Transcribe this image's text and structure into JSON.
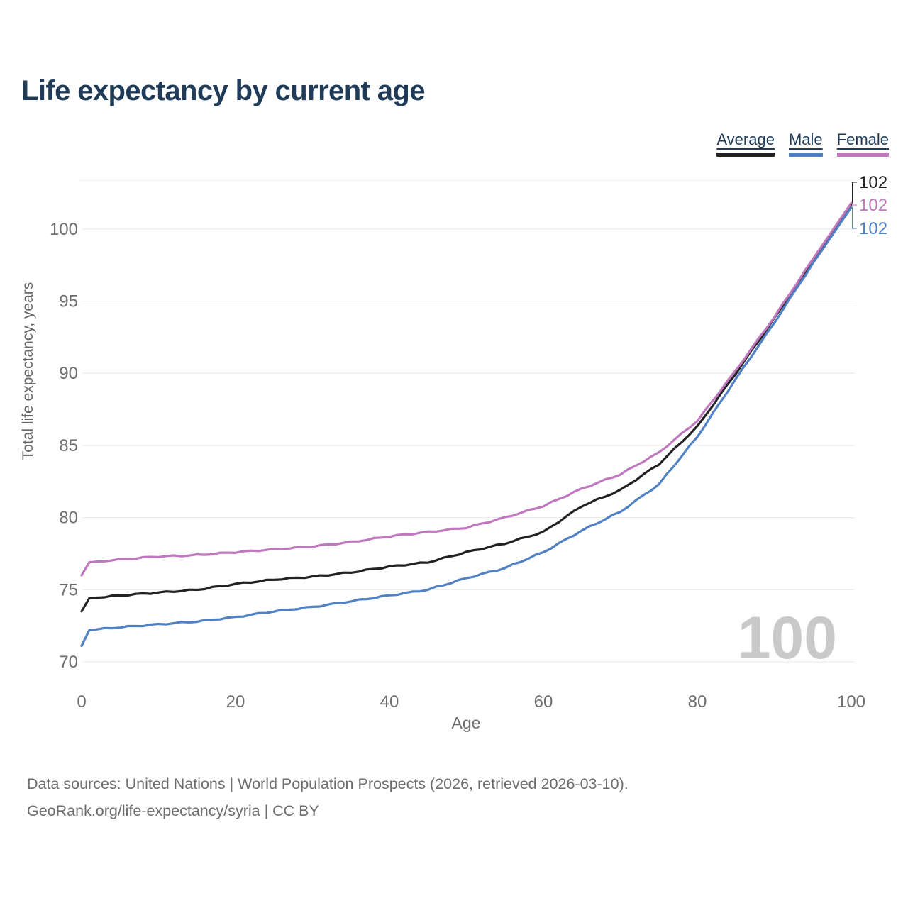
{
  "chart_data": {
    "type": "line",
    "title": "Life expectancy by current age",
    "xlabel": "Age",
    "ylabel": "Total life expectancy, years",
    "x_ticks": [
      0,
      20,
      40,
      60,
      80,
      100
    ],
    "y_ticks": [
      70,
      75,
      80,
      85,
      90,
      95,
      100
    ],
    "xlim": [
      0,
      100
    ],
    "ylim": [
      70,
      103
    ],
    "grid": "horizontal-only",
    "legend_position": "top-right",
    "watermark": "100",
    "watermark_color": "#c9c9c9",
    "x": [
      0,
      1,
      5,
      10,
      15,
      20,
      25,
      30,
      35,
      40,
      45,
      50,
      55,
      60,
      65,
      70,
      75,
      80,
      85,
      90,
      95,
      100
    ],
    "series": [
      {
        "name": "Average",
        "color": "#222222",
        "end_label": "102",
        "values": [
          73.5,
          74.4,
          74.6,
          74.8,
          75.0,
          75.4,
          75.7,
          75.9,
          76.2,
          76.6,
          76.9,
          77.6,
          78.2,
          79.0,
          80.8,
          81.9,
          83.7,
          86.3,
          90.0,
          93.8,
          97.8,
          101.7
        ]
      },
      {
        "name": "Male",
        "color": "#5181c5",
        "end_label": "102",
        "values": [
          71.1,
          72.2,
          72.4,
          72.6,
          72.8,
          73.1,
          73.5,
          73.8,
          74.2,
          74.6,
          75.0,
          75.8,
          76.5,
          77.6,
          79.1,
          80.4,
          82.3,
          85.6,
          89.6,
          93.5,
          97.6,
          101.5
        ]
      },
      {
        "name": "Female",
        "color": "#bf77bd",
        "end_label": "102",
        "values": [
          76.0,
          76.9,
          77.1,
          77.3,
          77.4,
          77.6,
          77.8,
          78.0,
          78.3,
          78.7,
          79.0,
          79.3,
          80.0,
          80.8,
          82.0,
          83.0,
          84.5,
          86.7,
          90.2,
          93.9,
          97.9,
          101.8
        ]
      }
    ],
    "axis_text_color": "#6e6e6e",
    "grid_color": "#e8e8e8"
  },
  "footer": {
    "line1": "Data sources: United Nations | World Population Prospects (2026, retrieved 2026-03-10).",
    "line2": "GeoRank.org/life-expectancy/syria | CC BY"
  }
}
